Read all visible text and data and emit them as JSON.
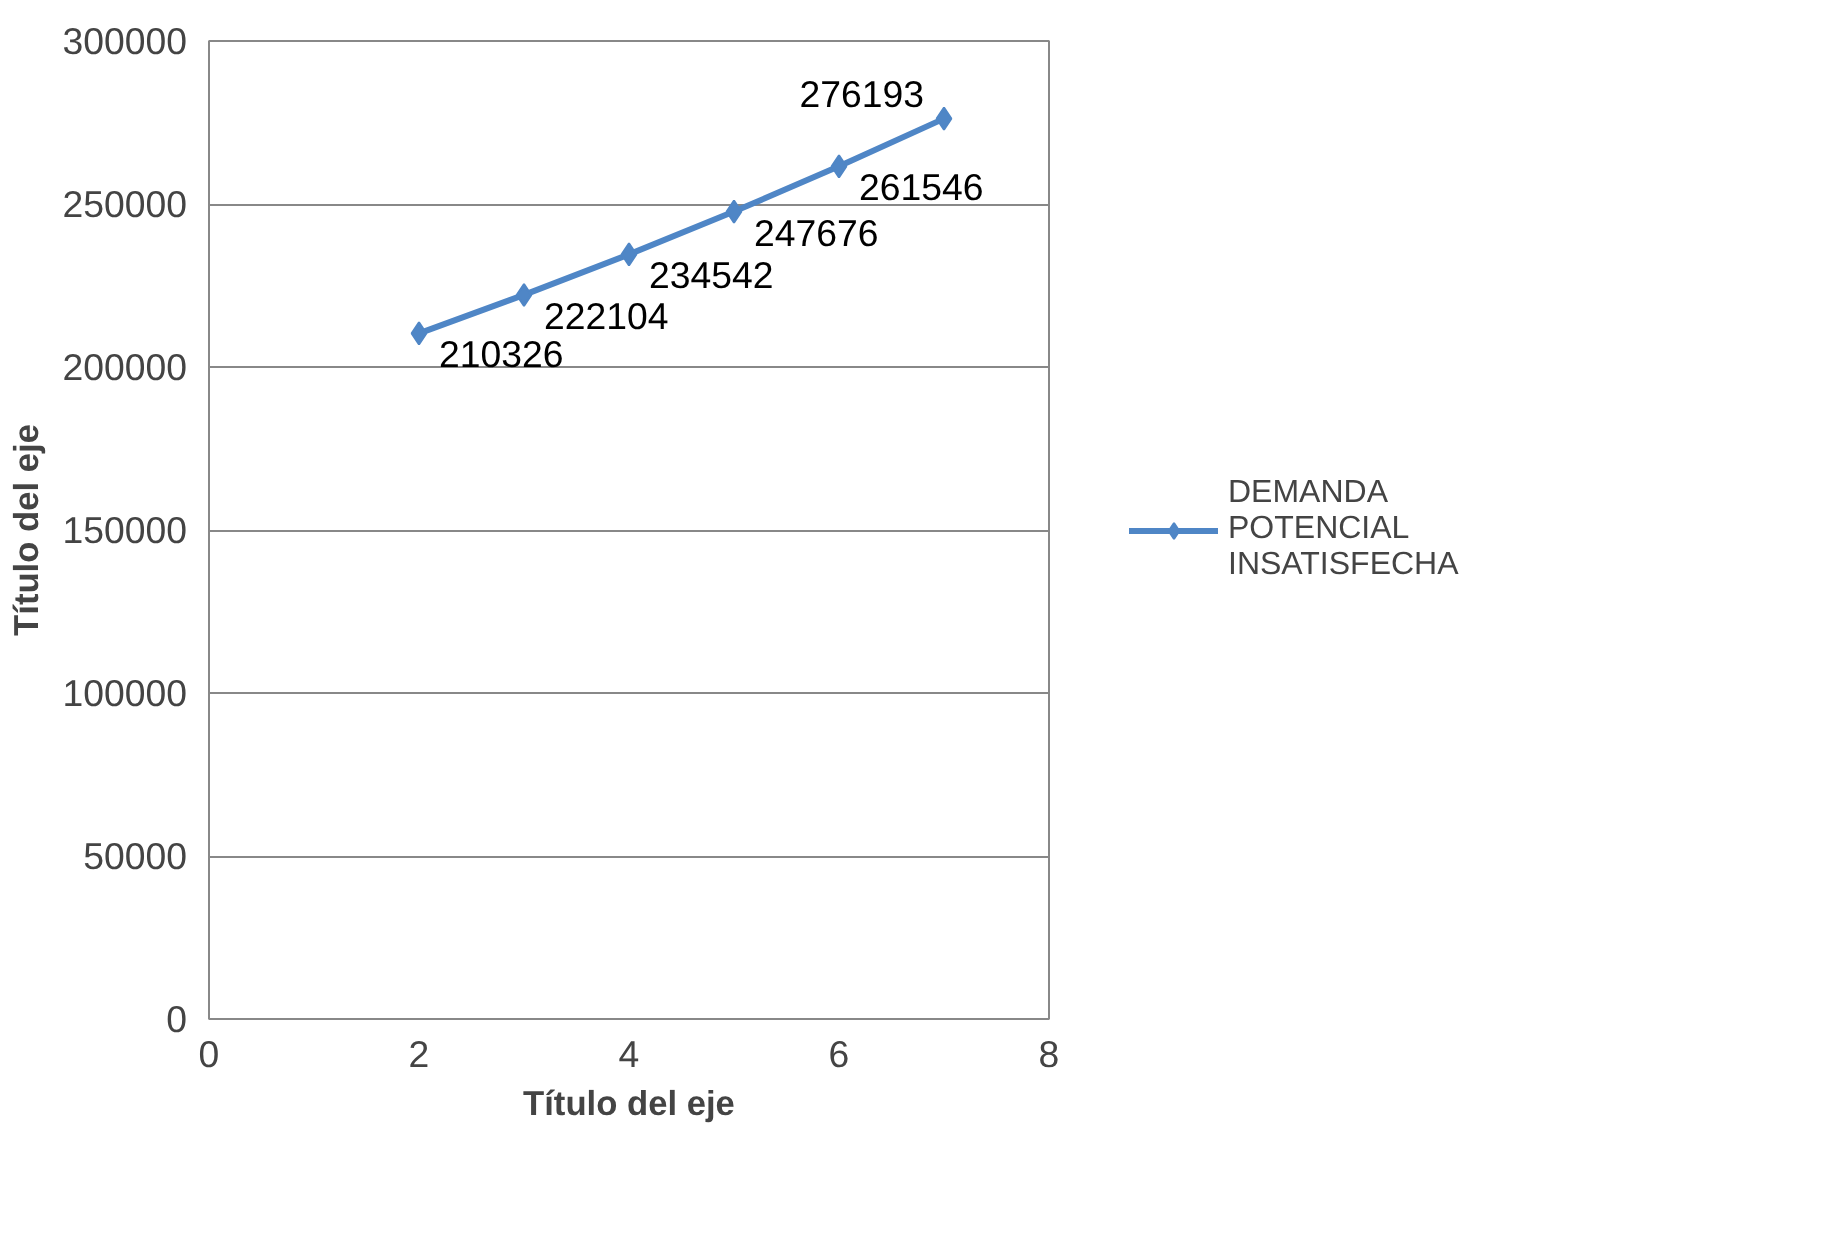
{
  "chart_data": {
    "type": "line",
    "xlabel": "Título del eje",
    "ylabel": "Título del eje",
    "x": [
      2,
      3,
      4,
      5,
      6,
      7
    ],
    "series": [
      {
        "name": "DEMANDA POTENCIAL INSATISFECHA",
        "color": "#4f86c6",
        "values": [
          210326,
          222104,
          234542,
          247676,
          261546,
          276193
        ]
      }
    ],
    "xlim": [
      0,
      8
    ],
    "xticks": [
      0,
      2,
      4,
      6,
      8
    ],
    "ylim": [
      0,
      300000
    ],
    "yticks": [
      0,
      50000,
      100000,
      150000,
      200000,
      250000,
      300000
    ],
    "grid": "y",
    "legend": "right",
    "marker": "diamond",
    "line_style": "solid",
    "data_labels": true
  }
}
